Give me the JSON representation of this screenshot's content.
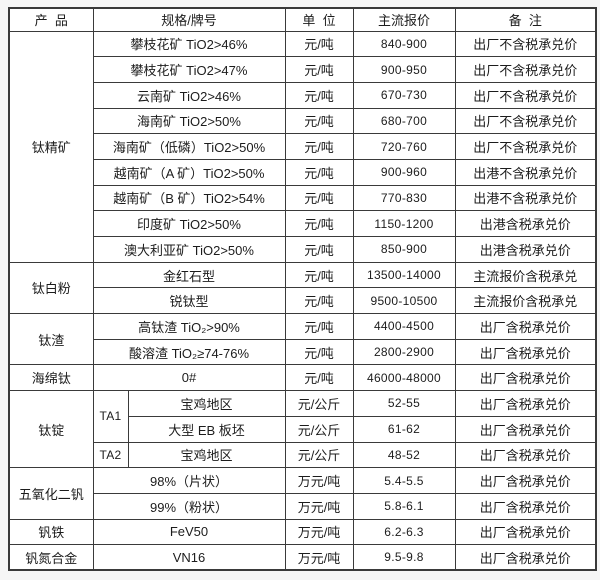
{
  "colors": {
    "page_bg": "#f6f6f6",
    "table_bg": "#ffffff",
    "border": "#3a3a3a",
    "text": "#1c1c1c"
  },
  "table": {
    "headers": [
      "产  品",
      "规格/牌号",
      "单  位",
      "主流报价",
      "备  注"
    ],
    "groups": [
      {
        "product": "钛精矿",
        "rows": [
          {
            "spec": "攀枝花矿 TiO2>46%",
            "unit": "元/吨",
            "price": "840-900",
            "note": "出厂不含税承兑价"
          },
          {
            "spec": "攀枝花矿 TiO2>47%",
            "unit": "元/吨",
            "price": "900-950",
            "note": "出厂不含税承兑价"
          },
          {
            "spec": "云南矿 TiO2>46%",
            "unit": "元/吨",
            "price": "670-730",
            "note": "出厂不含税承兑价"
          },
          {
            "spec": "海南矿 TiO2>50%",
            "unit": "元/吨",
            "price": "680-700",
            "note": "出厂不含税承兑价"
          },
          {
            "spec": "海南矿（低磷）TiO2>50%",
            "unit": "元/吨",
            "price": "720-760",
            "note": "出厂不含税承兑价"
          },
          {
            "spec": "越南矿（A 矿）TiO2>50%",
            "unit": "元/吨",
            "price": "900-960",
            "note": "出港不含税承兑价"
          },
          {
            "spec": "越南矿（B 矿）TiO2>54%",
            "unit": "元/吨",
            "price": "770-830",
            "note": "出港不含税承兑价"
          },
          {
            "spec": "印度矿 TiO2>50%",
            "unit": "元/吨",
            "price": "1150-1200",
            "note": "出港含税承兑价"
          },
          {
            "spec": "澳大利亚矿 TiO2>50%",
            "unit": "元/吨",
            "price": "850-900",
            "note": "出港含税承兑价"
          }
        ]
      },
      {
        "product": "钛白粉",
        "rows": [
          {
            "spec": "金红石型",
            "unit": "元/吨",
            "price": "13500-14000",
            "note": "主流报价含税承兑"
          },
          {
            "spec": "锐钛型",
            "unit": "元/吨",
            "price": "9500-10500",
            "note": "主流报价含税承兑"
          }
        ]
      },
      {
        "product": "钛渣",
        "rows": [
          {
            "spec": "高钛渣 TiO₂>90%",
            "unit": "元/吨",
            "price": "4400-4500",
            "note": "出厂含税承兑价"
          },
          {
            "spec": "酸溶渣 TiO₂≥74-76%",
            "unit": "元/吨",
            "price": "2800-2900",
            "note": "出厂含税承兑价"
          }
        ]
      },
      {
        "product": "海绵钛",
        "rows": [
          {
            "spec": "0#",
            "unit": "元/吨",
            "price": "46000-48000",
            "note": "出厂含税承兑价"
          }
        ]
      },
      {
        "product": "钛锭",
        "split_spec": true,
        "rows": [
          {
            "grade": "TA1",
            "grade_rowspan": 2,
            "spec": "宝鸡地区",
            "unit": "元/公斤",
            "price": "52-55",
            "note": "出厂含税承兑价"
          },
          {
            "spec": "大型 EB 板坯",
            "unit": "元/公斤",
            "price": "61-62",
            "note": "出厂含税承兑价"
          },
          {
            "grade": "TA2",
            "grade_rowspan": 1,
            "spec": "宝鸡地区",
            "unit": "元/公斤",
            "price": "48-52",
            "note": "出厂含税承兑价"
          }
        ]
      },
      {
        "product": "五氧化二钒",
        "rows": [
          {
            "spec": "98%（片状）",
            "unit": "万元/吨",
            "price": "5.4-5.5",
            "note": "出厂含税承兑价"
          },
          {
            "spec": "99%（粉状）",
            "unit": "万元/吨",
            "price": "5.8-6.1",
            "note": "出厂含税承兑价"
          }
        ]
      },
      {
        "product": "钒铁",
        "rows": [
          {
            "spec": "FeV50",
            "unit": "万元/吨",
            "price": "6.2-6.3",
            "note": "出厂含税承兑价"
          }
        ]
      },
      {
        "product": "钒氮合金",
        "rows": [
          {
            "spec": "VN16",
            "unit": "万元/吨",
            "price": "9.5-9.8",
            "note": "出厂含税承兑价"
          }
        ]
      }
    ]
  }
}
